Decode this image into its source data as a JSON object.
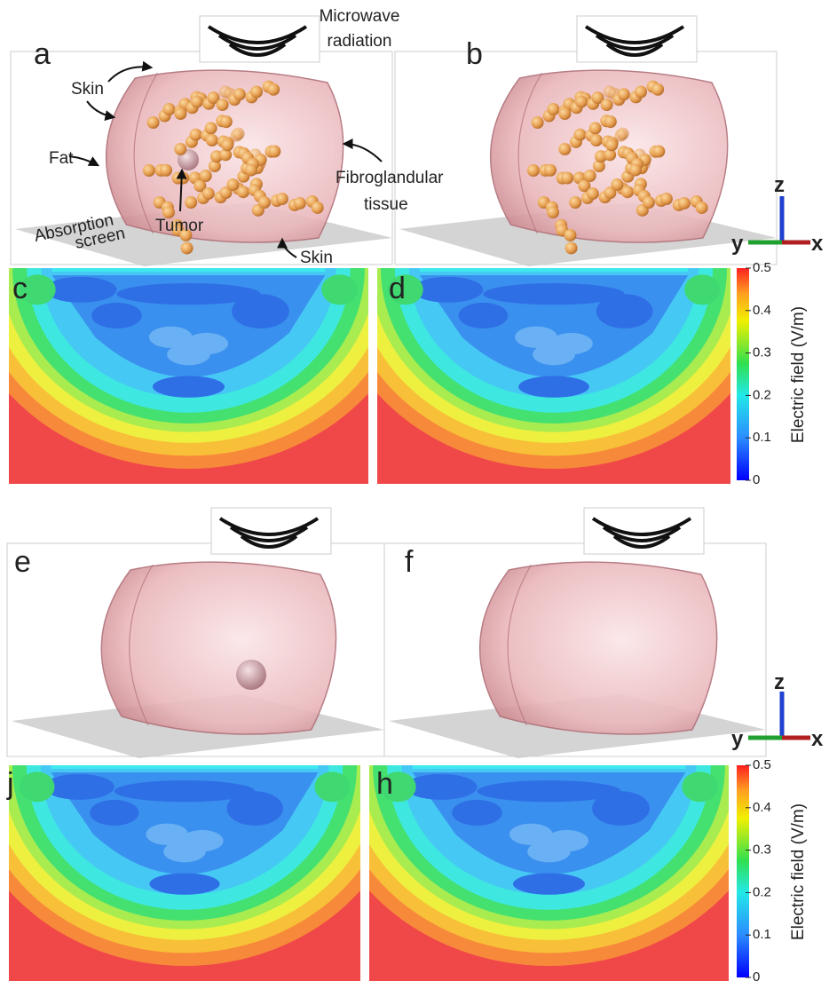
{
  "top_row": {
    "microwave_label": [
      "Microwave",
      "radiation"
    ],
    "panel_letters": [
      "a",
      "b"
    ],
    "annotations": {
      "skin_top": "Skin",
      "fat": "Fat",
      "tumor": "Tumor",
      "fibroglandular": [
        "Fibroglandular",
        "tissue"
      ],
      "absorption_screen": [
        "Absorption",
        "screen"
      ],
      "skin_bottom": "Skin"
    },
    "axes": {
      "z": "z",
      "y": "y",
      "x": "x"
    }
  },
  "field_maps_top": {
    "panel_letters": [
      "c",
      "d"
    ],
    "colorbar": {
      "label": "Electric field (V/m)",
      "ticks": [
        0,
        0.1,
        0.2,
        0.3,
        0.4,
        0.5
      ]
    }
  },
  "bottom_row": {
    "panel_letters": [
      "e",
      "f"
    ],
    "axes": {
      "z": "z",
      "y": "y",
      "x": "x"
    }
  },
  "field_maps_bottom": {
    "panel_letters": [
      "j",
      "h"
    ],
    "colorbar": {
      "label": "Electric field (V/m)",
      "ticks": [
        0,
        0.1,
        0.2,
        0.3,
        0.4,
        0.5
      ]
    }
  }
}
